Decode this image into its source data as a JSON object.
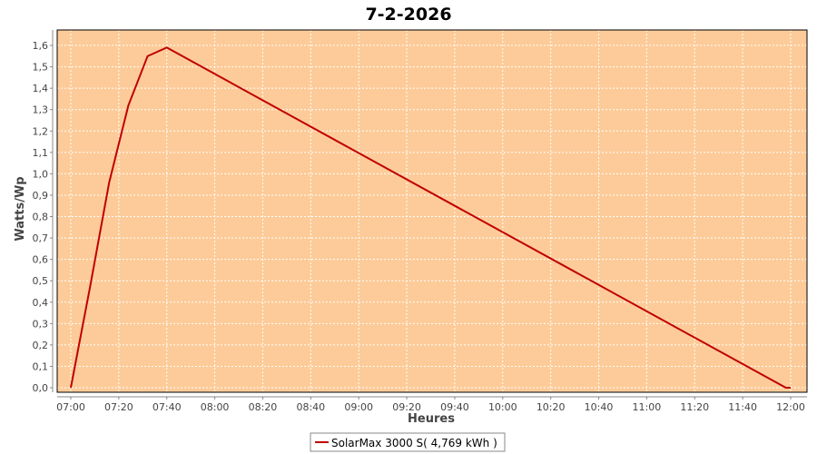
{
  "chart_data": {
    "type": "line",
    "title": "7-2-2026",
    "xlabel": "Heures",
    "ylabel": "Watts/Wp",
    "xlim": [
      "06:59",
      "12:01"
    ],
    "ylim": [
      0,
      1.66
    ],
    "x_ticks": [
      "07:00",
      "07:20",
      "07:40",
      "08:00",
      "08:20",
      "08:40",
      "09:00",
      "09:20",
      "09:40",
      "10:00",
      "10:20",
      "10:40",
      "11:00",
      "11:20",
      "11:40",
      "12:00"
    ],
    "y_ticks": [
      "0,0",
      "0,1",
      "0,2",
      "0,3",
      "0,4",
      "0,5",
      "0,6",
      "0,7",
      "0,8",
      "0,9",
      "1,0",
      "1,1",
      "1,2",
      "1,3",
      "1,4",
      "1,5",
      "1,6"
    ],
    "grid": true,
    "legend_position": "bottom",
    "background_color": "#FDCB99",
    "series": [
      {
        "name": "SolarMax 3000 S( 4,769 kWh )",
        "color": "#C00000",
        "x": [
          "07:00",
          "07:08",
          "07:16",
          "07:24",
          "07:32",
          "07:40",
          "11:58",
          "12:00"
        ],
        "values": [
          0,
          0.47,
          0.96,
          1.32,
          1.55,
          1.59,
          0,
          0
        ]
      }
    ]
  }
}
